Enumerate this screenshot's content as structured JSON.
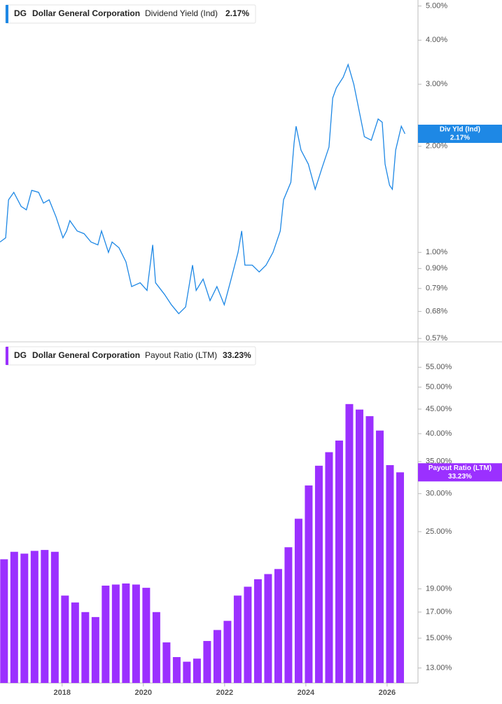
{
  "chart_data": [
    {
      "type": "line",
      "ticker": "DG",
      "company": "Dollar General Corporation",
      "last_label": "2.17%",
      "badge_label": "Div Yld (Ind)",
      "log": true,
      "xlim": [
        2016.47,
        2026.76
      ],
      "x": [
        2016.47,
        2016.61,
        2016.68,
        2016.81,
        2016.99,
        2017.12,
        2017.25,
        2017.42,
        2017.54,
        2017.68,
        2017.85,
        2018.02,
        2018.11,
        2018.19,
        2018.37,
        2018.54,
        2018.71,
        2018.88,
        2018.97,
        2019.14,
        2019.23,
        2019.4,
        2019.57,
        2019.71,
        2019.92,
        2020.09,
        2020.23,
        2020.3,
        2020.52,
        2020.69,
        2020.87,
        2021.04,
        2021.21,
        2021.3,
        2021.47,
        2021.64,
        2021.81,
        2021.99,
        2022.16,
        2022.33,
        2022.42,
        2022.5,
        2022.68,
        2022.85,
        2023.02,
        2023.19,
        2023.37,
        2023.45,
        2023.63,
        2023.71,
        2023.76,
        2023.88,
        2024.06,
        2024.23,
        2024.4,
        2024.57,
        2024.66,
        2024.75,
        2024.92,
        2025.04,
        2025.18,
        2025.3,
        2025.44,
        2025.61,
        2025.78,
        2025.88,
        2025.95,
        2026.06,
        2026.13,
        2026.21,
        2026.35,
        2026.44
      ],
      "series": [
        {
          "name": "Dividend Yield (Ind)",
          "color": "#1e88e5",
          "values": [
            1.07,
            1.1,
            1.41,
            1.48,
            1.35,
            1.32,
            1.5,
            1.48,
            1.38,
            1.41,
            1.26,
            1.1,
            1.15,
            1.23,
            1.15,
            1.13,
            1.07,
            1.05,
            1.15,
            1.0,
            1.07,
            1.03,
            0.94,
            0.8,
            0.82,
            0.78,
            1.05,
            0.82,
            0.76,
            0.71,
            0.67,
            0.7,
            0.92,
            0.78,
            0.84,
            0.73,
            0.8,
            0.71,
            0.84,
            1.0,
            1.15,
            0.92,
            0.92,
            0.88,
            0.92,
            1.0,
            1.15,
            1.41,
            1.58,
            2.04,
            2.28,
            1.95,
            1.78,
            1.51,
            1.74,
            1.99,
            2.74,
            2.93,
            3.14,
            3.41,
            3.0,
            2.56,
            2.13,
            2.08,
            2.39,
            2.34,
            1.78,
            1.55,
            1.51,
            1.95,
            2.28,
            2.17
          ]
        }
      ],
      "ylim": [
        0.56,
        5.2
      ],
      "yticks": [
        {
          "value": 5,
          "label": "5.00%"
        },
        {
          "value": 4,
          "label": "4.00%"
        },
        {
          "value": 3,
          "label": "3.00%"
        },
        {
          "value": 2,
          "label": "2.00%"
        },
        {
          "value": 1,
          "label": "1.00%"
        },
        {
          "value": 0.9,
          "label": "0.90%"
        },
        {
          "value": 0.79,
          "label": "0.79%"
        },
        {
          "value": 0.68,
          "label": "0.68%"
        },
        {
          "value": 0.57,
          "label": "0.57%"
        }
      ]
    },
    {
      "type": "bar",
      "ticker": "DG",
      "company": "Dollar General Corporation",
      "last_label": "33.23%",
      "badge_label": "Payout Ratio (LTM)",
      "log": true,
      "xlim": [
        2016.47,
        2026.76
      ],
      "x": [
        2016.57,
        2016.82,
        2017.07,
        2017.32,
        2017.57,
        2017.82,
        2018.07,
        2018.32,
        2018.57,
        2018.82,
        2019.07,
        2019.32,
        2019.57,
        2019.82,
        2020.07,
        2020.32,
        2020.57,
        2020.82,
        2021.07,
        2021.32,
        2021.57,
        2021.82,
        2022.07,
        2022.32,
        2022.57,
        2022.82,
        2023.07,
        2023.32,
        2023.57,
        2023.82,
        2024.07,
        2024.32,
        2024.57,
        2024.82,
        2025.07,
        2025.32,
        2025.57,
        2025.82,
        2026.07,
        2026.32
      ],
      "series": [
        {
          "name": "Payout Ratio (LTM)",
          "color": "#9b30ff",
          "values": [
            21.9,
            22.7,
            22.5,
            22.8,
            22.9,
            22.7,
            18.4,
            17.8,
            17.0,
            16.6,
            19.3,
            19.4,
            19.5,
            19.4,
            19.1,
            17.0,
            14.7,
            13.7,
            13.4,
            13.6,
            14.8,
            15.6,
            16.3,
            18.4,
            19.2,
            19.9,
            20.4,
            20.9,
            23.2,
            26.6,
            31.2,
            34.3,
            36.6,
            38.7,
            46.1,
            44.9,
            43.5,
            40.6,
            34.4,
            33.23
          ]
        }
      ],
      "ylim": [
        12.1,
        61.3
      ],
      "yticks": [
        {
          "value": 55,
          "label": "55.00%"
        },
        {
          "value": 50,
          "label": "50.00%"
        },
        {
          "value": 45,
          "label": "45.00%"
        },
        {
          "value": 40,
          "label": "40.00%"
        },
        {
          "value": 35,
          "label": "35.00%"
        },
        {
          "value": 30,
          "label": "30.00%"
        },
        {
          "value": 25,
          "label": "25.00%"
        },
        {
          "value": 19,
          "label": "19.00%"
        },
        {
          "value": 17,
          "label": "17.00%"
        },
        {
          "value": 15,
          "label": "15.00%"
        },
        {
          "value": 13,
          "label": "13.00%"
        }
      ],
      "xticks": [
        2018,
        2020,
        2022,
        2024,
        2026
      ]
    }
  ]
}
